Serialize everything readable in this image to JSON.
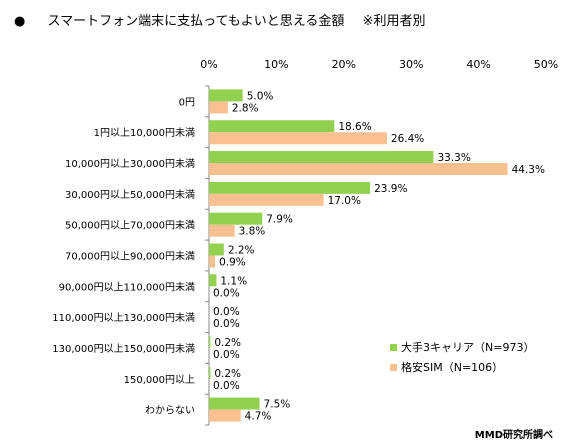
{
  "title": {
    "bullet": "●",
    "text": "スマートフォン端末に支払ってもよいと思える金額",
    "note": "※利用者別"
  },
  "credit": "MMD研究所調べ",
  "chart_data": {
    "type": "bar",
    "orientation": "horizontal",
    "categories": [
      "0円",
      "1円以上10,000円未満",
      "10,000円以上30,000円未満",
      "30,000円以上50,000円未満",
      "50,000円以上70,000円未満",
      "70,000円以上90,000円未満",
      "90,000円以上110,000円未満",
      "110,000円以上130,000円未満",
      "130,000円以上150,000円未満",
      "150,000円以上",
      "わからない"
    ],
    "series": [
      {
        "name": "大手3キャリア（N=973）",
        "color": "#92d050",
        "values": [
          5.0,
          18.6,
          33.3,
          23.9,
          7.9,
          2.2,
          1.1,
          0.0,
          0.2,
          0.2,
          7.5
        ]
      },
      {
        "name": "格安SIM（N=106）",
        "color": "#fac090",
        "values": [
          2.8,
          26.4,
          44.3,
          17.0,
          3.8,
          0.9,
          0.0,
          0.0,
          0.0,
          0.0,
          4.7
        ]
      }
    ],
    "value_format": "%",
    "xlim": [
      0,
      50
    ],
    "xticks": [
      "0%",
      "10%",
      "20%",
      "30%",
      "40%",
      "50%"
    ],
    "grid": false,
    "legend_position": "bottom-right"
  }
}
